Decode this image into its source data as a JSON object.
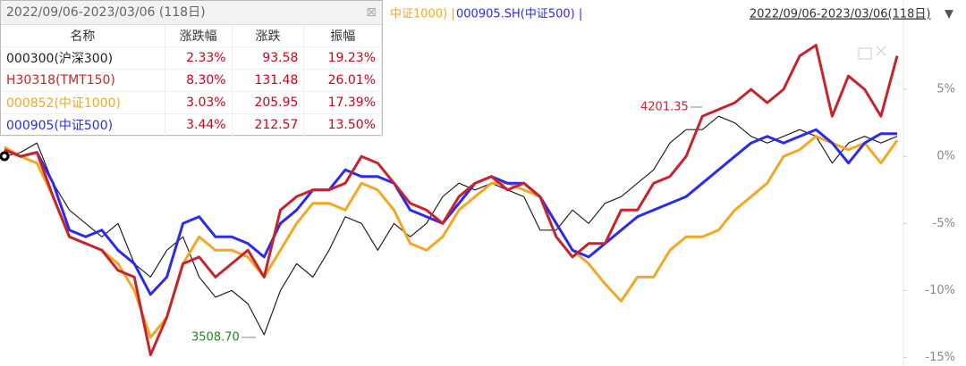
{
  "chart_data": {
    "type": "line",
    "series": [
      {
        "name": "000300(沪深300)",
        "color": "#222222",
        "values": [
          0,
          0.3,
          1,
          -2,
          -4,
          -5,
          -6,
          -5,
          -8,
          -9,
          -7,
          -6,
          -9,
          -10.5,
          -10,
          -11,
          -13.3,
          -10,
          -8,
          -9,
          -7,
          -4.5,
          -5,
          -7,
          -5,
          -6,
          -5,
          -3,
          -2,
          -2.5,
          -2,
          -2.5,
          -3,
          -5.5,
          -5.5,
          -4,
          -5,
          -3.5,
          -3,
          -2,
          -1,
          1,
          2,
          2,
          3,
          2.5,
          1.5,
          1,
          1.5,
          2,
          1.5,
          -0.5,
          1,
          1.5,
          1,
          1.5
        ]
      },
      {
        "name": "H30318(TMT150)",
        "color": "#c8232c",
        "values": [
          0.5,
          0,
          0.3,
          -3,
          -6,
          -6.5,
          -7,
          -8.5,
          -9,
          -14.8,
          -12,
          -8,
          -7.5,
          -9,
          -8,
          -7,
          -9,
          -4,
          -3,
          -2.5,
          -2.5,
          -2,
          0,
          -0.5,
          -2,
          -3.5,
          -4,
          -5,
          -3,
          -2,
          -1.5,
          -2.5,
          -2,
          -3,
          -6,
          -7.5,
          -6.5,
          -6.5,
          -4,
          -4,
          -2,
          -1.5,
          0,
          3,
          3.5,
          4,
          5,
          4,
          5,
          7.5,
          8.3,
          3,
          6,
          5,
          3,
          7.5
        ]
      },
      {
        "name": "000852(中证1000)",
        "color": "#f5a623",
        "values": [
          0.7,
          0,
          -0.5,
          -3,
          -6,
          -6.5,
          -7,
          -8,
          -10,
          -13.5,
          -12,
          -8,
          -6,
          -7,
          -7,
          -7.5,
          -9,
          -7,
          -5,
          -3.5,
          -3.5,
          -4,
          -2,
          -2.5,
          -4,
          -6.5,
          -7,
          -6,
          -4,
          -3,
          -2,
          -2,
          -2.5,
          -3,
          -5,
          -7,
          -8,
          -9.5,
          -10.8,
          -9,
          -9,
          -7,
          -6,
          -6,
          -5.5,
          -4,
          -3,
          -2,
          0,
          0.5,
          1.5,
          1,
          0.5,
          1,
          -0.5,
          1.2
        ]
      },
      {
        "name": "000905(中证500)",
        "color": "#2b2bf0",
        "values": [
          0.5,
          0,
          0.3,
          -2,
          -5.5,
          -6,
          -5.5,
          -7,
          -8,
          -10.3,
          -9,
          -5,
          -4.5,
          -6,
          -6,
          -6.5,
          -7.5,
          -5,
          -4,
          -2.5,
          -2.5,
          -1,
          -1.5,
          -1.5,
          -2,
          -4,
          -4.5,
          -5,
          -3.5,
          -2,
          -1.5,
          -2,
          -2,
          -3,
          -5,
          -7,
          -7.5,
          -6.5,
          -5.5,
          -4.5,
          -4,
          -3.5,
          -3,
          -2,
          -1,
          0,
          1,
          1.5,
          1,
          1.5,
          2,
          1,
          -0.5,
          1,
          1.7,
          1.7
        ]
      }
    ],
    "ylim": [
      -15.3,
      11
    ],
    "yticks": [
      {
        "value": 5,
        "label": "5%"
      },
      {
        "value": 0,
        "label": "0%"
      },
      {
        "value": -5,
        "label": "-5%"
      },
      {
        "value": -10,
        "label": "-10%"
      },
      {
        "value": -15,
        "label": "-15%"
      }
    ],
    "annotations": [
      "4201.35",
      "3508.70"
    ],
    "legend_fragments": [
      "中证1000) |",
      "000905.SH(中证500) |"
    ],
    "range_label": "2022/09/06-2023/03/06(118日)",
    "panel": {
      "title": "2022/09/06-2023/03/06 (118日)",
      "columns": [
        "名称",
        "涨跌幅",
        "涨跌",
        "振幅"
      ],
      "rows": [
        [
          "2.33%",
          "93.58",
          "19.23%"
        ],
        [
          "8.30%",
          "131.48",
          "26.01%"
        ],
        [
          "3.03%",
          "205.95",
          "17.39%"
        ],
        [
          "3.44%",
          "212.57",
          "13.50%"
        ]
      ]
    }
  }
}
